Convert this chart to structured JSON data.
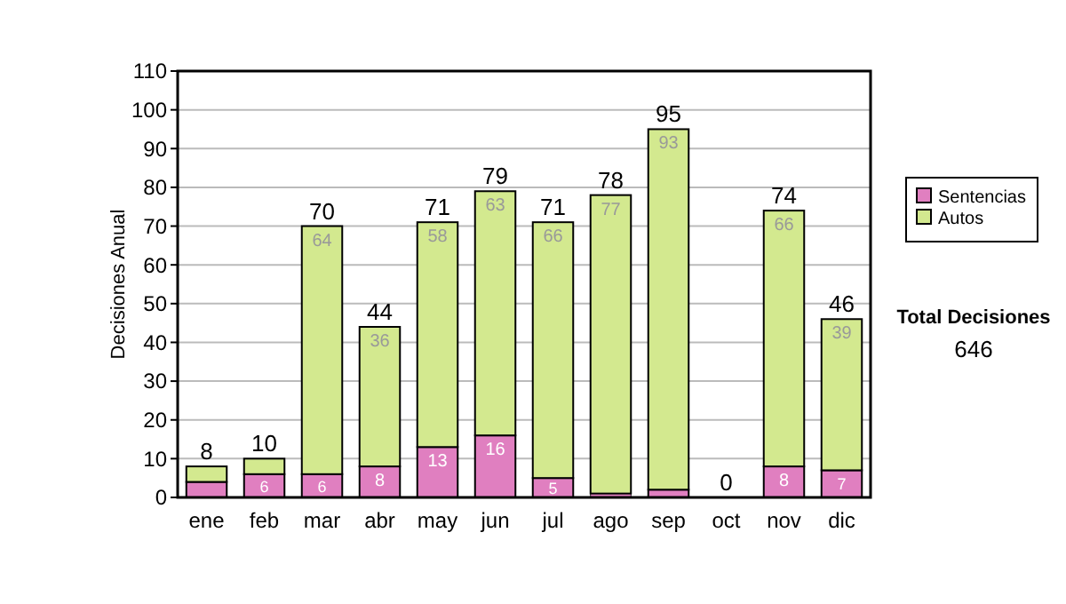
{
  "chart_data": {
    "type": "bar",
    "stacked": true,
    "ylabel": "Decisiones Anual",
    "categories": [
      "ene",
      "feb",
      "mar",
      "abr",
      "may",
      "jun",
      "jul",
      "ago",
      "sep",
      "oct",
      "nov",
      "dic"
    ],
    "series": [
      {
        "name": "Sentencias",
        "color": "#e07fc0",
        "values": [
          4,
          6,
          6,
          8,
          13,
          16,
          5,
          1,
          2,
          0,
          8,
          7
        ],
        "value_labels": [
          null,
          "6",
          "6",
          "8",
          "13",
          "16",
          "5",
          null,
          null,
          null,
          "8",
          "7"
        ]
      },
      {
        "name": "Autos",
        "color": "#d3e98f",
        "values": [
          4,
          4,
          64,
          36,
          58,
          63,
          66,
          77,
          93,
          0,
          66,
          39
        ],
        "value_labels": [
          null,
          null,
          "64",
          "36",
          "58",
          "63",
          "66",
          "77",
          "93",
          null,
          "66",
          "39"
        ]
      }
    ],
    "totals": [
      "8",
      "10",
      "70",
      "44",
      "71",
      "79",
      "71",
      "78",
      "95",
      "0",
      "74",
      "46"
    ],
    "ylim": [
      0,
      110
    ],
    "yticks": [
      0,
      10,
      20,
      30,
      40,
      50,
      60,
      70,
      80,
      90,
      100,
      110
    ],
    "grid": "y",
    "legend": "right",
    "annotations": [
      "Total Decisiones",
      "646"
    ]
  }
}
